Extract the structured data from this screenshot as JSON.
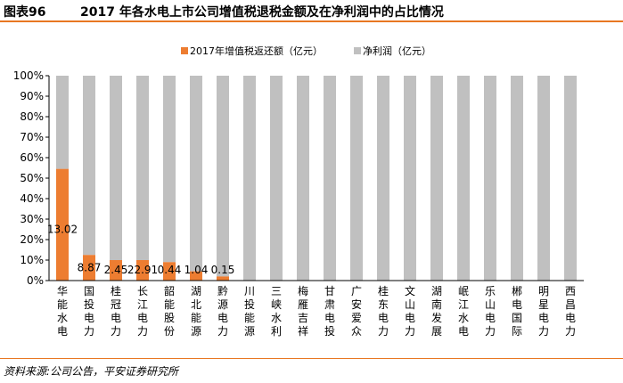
{
  "figure": {
    "label": "图表96",
    "title": "2017 年各水电上市公司增值税退税金额及在净利润中的占比情况",
    "source": "资料来源:公司公告，平安证券研究所"
  },
  "colors": {
    "accent": "#e87722",
    "series_refund": "#ed7d31",
    "series_profit": "#c0c0c0"
  },
  "chart_data": {
    "type": "bar",
    "stacked": "percent",
    "categories": [
      "华能水电",
      "国投电力",
      "桂冠电力",
      "长江电力",
      "韶能股份",
      "湖北能源",
      "黔源电力",
      "川投能源",
      "三峡水利",
      "梅雁吉祥",
      "甘肃电投",
      "广安爱众",
      "桂东电力",
      "文山电力",
      "湖南发展",
      "岷江水电",
      "乐山电力",
      "郴电国际",
      "明星电力",
      "西昌电力"
    ],
    "series": [
      {
        "name": "2017年增值税返还额（亿元）",
        "values": [
          13.02,
          8.87,
          2.45,
          22.91,
          0.44,
          1.04,
          0.15,
          0,
          0,
          0,
          0,
          0,
          0,
          0,
          0,
          0,
          0,
          0,
          0,
          0
        ]
      },
      {
        "name": "净利润（亿元）"
      }
    ],
    "refund_share_pct": [
      54.5,
      12.5,
      10.0,
      10.0,
      9.0,
      4.5,
      2.0,
      0,
      0,
      0,
      0,
      0,
      0,
      0,
      0,
      0,
      0,
      0,
      0,
      0
    ],
    "data_labels": [
      "13.02",
      "8.87",
      "2.45",
      "22.91",
      "0.44",
      "1.04",
      "0.15"
    ],
    "y_ticks": [
      "0%",
      "10%",
      "20%",
      "30%",
      "40%",
      "50%",
      "60%",
      "70%",
      "80%",
      "90%",
      "100%"
    ],
    "ylim": [
      0,
      100
    ],
    "legend_position": "top",
    "grid": false
  }
}
